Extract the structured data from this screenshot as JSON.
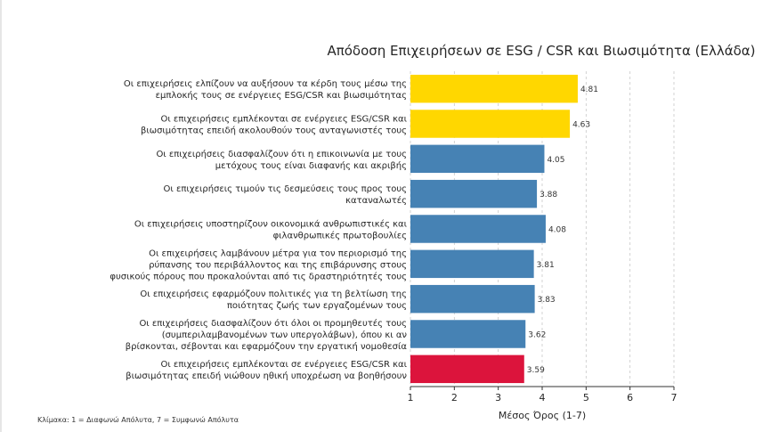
{
  "chart_data": {
    "type": "bar",
    "orientation": "horizontal",
    "title": "Απόδοση Επιχειρήσεων σε ESG / CSR και Βιωσιμότητα (Ελλάδα)",
    "xlabel": "Μέσος Όρος (1-7)",
    "ylabel": "",
    "xlim": [
      1,
      7
    ],
    "xticks": [
      "1",
      "2",
      "3",
      "4",
      "5",
      "6",
      "7"
    ],
    "grid": true,
    "note": "Κλίμακα: 1 = Διαφωνώ Απόλυτα, 7 = Συμφωνώ Απόλυτα",
    "colors": {
      "top": "#FFD700",
      "middle": "#4682B4",
      "bottom": "#DC143C"
    },
    "bars": [
      {
        "lines": [
          "Οι επιχειρήσεις ελπίζουν να αυξήσουν τα κέρδη τους μέσω της",
          "εμπλοκής τους σε ενέργειες ESG/CSR και βιωσιμότητας"
        ],
        "value": 4.81,
        "label": "4.81",
        "color": "#FFD700"
      },
      {
        "lines": [
          "Οι επιχειρήσεις εμπλέκονται σε ενέργειες ESG/CSR και",
          "βιωσιμότητας επειδή ακολουθούν τους ανταγωνιστές τους"
        ],
        "value": 4.63,
        "label": "4.63",
        "color": "#FFD700"
      },
      {
        "lines": [
          "Οι επιχειρήσεις διασφαλίζουν ότι η επικοινωνία με τους",
          "μετόχους τους είναι διαφανής και ακριβής"
        ],
        "value": 4.05,
        "label": "4.05",
        "color": "#4682B4"
      },
      {
        "lines": [
          "Οι επιχειρήσεις τιμούν τις δεσμεύσεις τους προς τους",
          "καταναλωτές"
        ],
        "value": 3.88,
        "label": "3.88",
        "color": "#4682B4"
      },
      {
        "lines": [
          "Οι επιχειρήσεις υποστηρίζουν οικονομικά ανθρωπιστικές και",
          "φιλανθρωπικές πρωτοβουλίες"
        ],
        "value": 4.08,
        "label": "4.08",
        "color": "#4682B4"
      },
      {
        "lines": [
          "Οι επιχειρήσεις λαμβάνουν μέτρα για τον περιορισμό της",
          "ρύπανσης του περιβάλλοντος και της επιβάρυνσης στους",
          "φυσικούς πόρους που προκαλούνται από τις δραστηριότητές τους"
        ],
        "value": 3.81,
        "label": "3.81",
        "color": "#4682B4"
      },
      {
        "lines": [
          "Οι επιχειρήσεις εφαρμόζουν πολιτικές για τη βελτίωση της",
          "ποιότητας ζωής των εργαζομένων τους"
        ],
        "value": 3.83,
        "label": "3.83",
        "color": "#4682B4"
      },
      {
        "lines": [
          "Οι επιχειρήσεις διασφαλίζουν ότι όλοι οι προμηθευτές τους",
          "(συμπεριλαμβανομένων των υπεργολάβων), όπου κι αν",
          "βρίσκονται, σέβονται και εφαρμόζουν την εργατική νομοθεσία"
        ],
        "value": 3.62,
        "label": "3.62",
        "color": "#4682B4"
      },
      {
        "lines": [
          "Οι επιχειρήσεις εμπλέκονται σε ενέργειες ESG/CSR και",
          "βιωσιμότητας επειδή νιώθουν ηθική υποχρέωση να βοηθήσουν"
        ],
        "value": 3.59,
        "label": "3.59",
        "color": "#DC143C"
      }
    ]
  }
}
